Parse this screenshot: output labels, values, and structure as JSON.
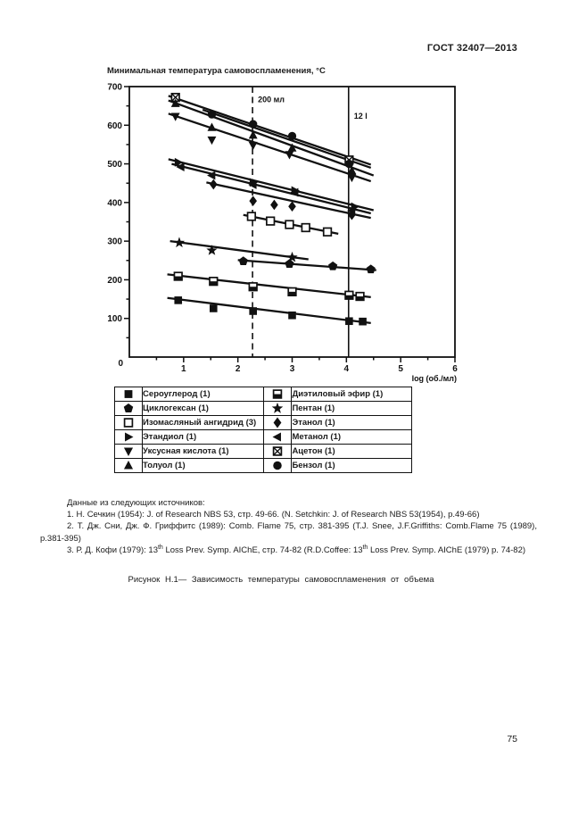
{
  "page": {
    "header_label": "ГОСТ 32407—2013",
    "page_number": "75"
  },
  "chart": {
    "title": "Минимальная температура самовоспламенения, °С",
    "x_axis_label": "log (об./мл)",
    "origin_label": "0"
  },
  "chart_data": {
    "type": "scatter",
    "title": "Минимальная температура самовоспламенения, °С",
    "xlabel": "log (об./мл)",
    "ylabel": "Минимальная температура самовоспламенения, °С",
    "xlim": [
      0,
      6
    ],
    "ylim": [
      0,
      700
    ],
    "x_major_ticks": [
      1,
      2,
      3,
      4,
      5,
      6
    ],
    "x_minor_step": 0.5,
    "y_major_ticks": [
      0,
      100,
      200,
      300,
      400,
      500,
      600,
      700
    ],
    "y_minor_step": 50,
    "grid": false,
    "legend_position": "table-below",
    "annotations": [
      {
        "text": "200 мл",
        "x": 2.27,
        "line_style": "dashed",
        "label_y": 660
      },
      {
        "text": "12 l",
        "x": 4.04,
        "line_style": "solid",
        "label_y": 617
      }
    ],
    "series": [
      {
        "name": "Ацетон",
        "marker": "square-cross",
        "trend_line": [
          0.72,
          676,
          4.45,
          498
        ],
        "points": [
          [
            0.85,
            672
          ],
          [
            4.05,
            510
          ]
        ]
      },
      {
        "name": "Толуол",
        "marker": "triangle-up",
        "trend_line": [
          0.72,
          664,
          4.5,
          470
        ],
        "points": [
          [
            0.85,
            656
          ],
          [
            1.52,
            594
          ],
          [
            2.28,
            574
          ],
          [
            3.0,
            541
          ],
          [
            4.1,
            482
          ]
        ]
      },
      {
        "name": "Бензол",
        "marker": "circle",
        "trend_line": [
          1.35,
          640,
          4.45,
          490
        ],
        "points": [
          [
            1.52,
            628
          ],
          [
            2.28,
            603
          ],
          [
            3.0,
            572
          ],
          [
            4.05,
            500
          ]
        ]
      },
      {
        "name": "Уксусная кислота",
        "marker": "triangle-down",
        "trend_line": [
          0.72,
          630,
          4.45,
          455
        ],
        "points": [
          [
            0.85,
            623
          ],
          [
            1.52,
            562
          ],
          [
            2.28,
            548
          ],
          [
            2.95,
            524
          ],
          [
            4.1,
            465
          ]
        ]
      },
      {
        "name": "Этандиол",
        "marker": "triangle-right",
        "trend_line": [
          0.72,
          512,
          4.5,
          380
        ],
        "points": [
          [
            0.9,
            504
          ],
          [
            2.28,
            452
          ],
          [
            3.05,
            431
          ],
          [
            4.15,
            389
          ]
        ]
      },
      {
        "name": "Метанол",
        "marker": "triangle-left",
        "trend_line": [
          0.78,
          500,
          4.45,
          372
        ],
        "points": [
          [
            0.95,
            492
          ],
          [
            1.52,
            470
          ],
          [
            2.28,
            446
          ],
          [
            3.05,
            426
          ],
          [
            4.1,
            379
          ]
        ]
      },
      {
        "name": "Этанол",
        "marker": "diamond",
        "trend_line": [
          1.42,
          452,
          4.45,
          360
        ],
        "points": [
          [
            1.55,
            447
          ],
          [
            2.28,
            404
          ],
          [
            2.67,
            394
          ],
          [
            3.0,
            390
          ],
          [
            4.1,
            368
          ]
        ]
      },
      {
        "name": "Изомасляный ангидрид",
        "marker": "square-open",
        "trend_line": [
          2.1,
          368,
          3.85,
          319
        ],
        "points": [
          [
            2.25,
            364
          ],
          [
            2.6,
            352
          ],
          [
            2.95,
            343
          ],
          [
            3.25,
            335
          ],
          [
            3.65,
            324
          ]
        ]
      },
      {
        "name": "Пентан",
        "marker": "star",
        "trend_line": [
          0.75,
          300,
          3.3,
          253
        ],
        "points": [
          [
            0.92,
            296
          ],
          [
            1.52,
            276
          ],
          [
            3.0,
            258
          ]
        ]
      },
      {
        "name": "Циклогексан",
        "marker": "pentagon",
        "trend_line": [
          2.0,
          251,
          4.55,
          225
        ],
        "points": [
          [
            2.1,
            248
          ],
          [
            2.95,
            241
          ],
          [
            3.75,
            235
          ],
          [
            4.45,
            227
          ]
        ]
      },
      {
        "name": "Диэтиловый эфир",
        "marker": "square-half",
        "trend_line": [
          0.7,
          214,
          4.45,
          155
        ],
        "points": [
          [
            0.9,
            209
          ],
          [
            1.55,
            196
          ],
          [
            2.28,
            182
          ],
          [
            3.0,
            169
          ],
          [
            4.05,
            160
          ],
          [
            4.25,
            157
          ]
        ]
      },
      {
        "name": "Сероуглерод",
        "marker": "square-filled",
        "trend_line": [
          0.7,
          153,
          4.45,
          88
        ],
        "points": [
          [
            0.9,
            147
          ],
          [
            1.55,
            126
          ],
          [
            2.28,
            119
          ],
          [
            3.0,
            108
          ],
          [
            4.05,
            93
          ],
          [
            4.3,
            92
          ]
        ]
      }
    ]
  },
  "legend": {
    "items": [
      {
        "label": "Сероуглерод (1)",
        "marker": "square-filled"
      },
      {
        "label": "Циклогексан (1)",
        "marker": "pentagon"
      },
      {
        "label": "Изомасляный ангидрид (3)",
        "marker": "square-open"
      },
      {
        "label": "Этандиол (1)",
        "marker": "triangle-right"
      },
      {
        "label": "Уксусная кислота (1)",
        "marker": "triangle-down"
      },
      {
        "label": "Толуол (1)",
        "marker": "triangle-up"
      },
      {
        "label": "Диэтиловый эфир (1)",
        "marker": "square-half"
      },
      {
        "label": "Пентан (1)",
        "marker": "star"
      },
      {
        "label": "Этанол (1)",
        "marker": "diamond"
      },
      {
        "label": "Метанол (1)",
        "marker": "triangle-left"
      },
      {
        "label": "Ацетон (1)",
        "marker": "square-cross"
      },
      {
        "label": "Бензол (1)",
        "marker": "circle"
      }
    ]
  },
  "sources": {
    "intro": "Данные из следующих источников:",
    "item1": "1. Н. Сечкин (1954): J. of Research NBS 53, стр. 49-66. (N. Setchkin: J. of Research NBS 53(1954), p.49-66)",
    "item2": "2. Т. Дж. Сни, Дж. Ф. Гриффитс (1989): Comb. Flame 75, стр. 381-395 (T.J. Snee, J.F.Griffiths: Comb.Flame 75 (1989), p.381-395)",
    "item3": {
      "p1": "3. Р. Д. Кофи (1979): 13",
      "sup1": "th",
      "p2": " Loss Prev. Symp. AIChE, стр. 74-82 (R.D.Coffee: 13",
      "sup2": "th",
      "p3": " Loss Prev. Symp. AIChE (1979) p. 74-82)"
    }
  },
  "caption": "Рисунок Н.1— Зависимость температуры самовоспламенения от объема"
}
